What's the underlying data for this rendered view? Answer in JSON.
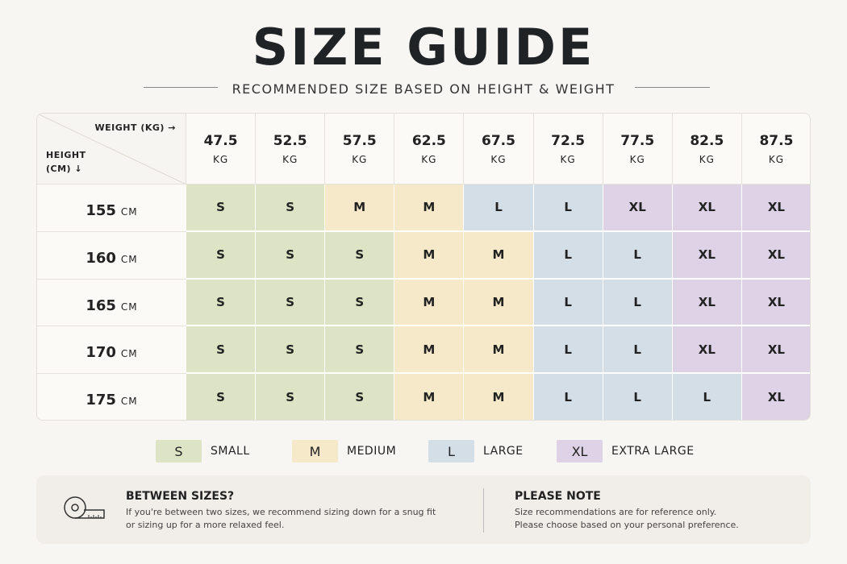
{
  "title": "SIZE GUIDE",
  "subtitle": "RECOMMENDED SIZE BASED ON HEIGHT & WEIGHT",
  "table": {
    "weight_label": "WEIGHT (KG) →",
    "height_label": [
      "HEIGHT",
      "(CM) ↓"
    ],
    "columns": [
      {
        "value": "47.5",
        "unit": "KG"
      },
      {
        "value": "52.5",
        "unit": "KG"
      },
      {
        "value": "57.5",
        "unit": "KG"
      },
      {
        "value": "62.5",
        "unit": "KG"
      },
      {
        "value": "67.5",
        "unit": "KG"
      },
      {
        "value": "72.5",
        "unit": "KG"
      },
      {
        "value": "77.5",
        "unit": "KG"
      },
      {
        "value": "82.5",
        "unit": "KG"
      },
      {
        "value": "87.5",
        "unit": "KG"
      }
    ],
    "rows": [
      {
        "height": "155",
        "unit": "CM",
        "sizes": [
          "S",
          "S",
          "M",
          "M",
          "L",
          "L",
          "XL",
          "XL",
          "XL"
        ]
      },
      {
        "height": "160",
        "unit": "CM",
        "sizes": [
          "S",
          "S",
          "S",
          "M",
          "M",
          "L",
          "L",
          "XL",
          "XL"
        ]
      },
      {
        "height": "165",
        "unit": "CM",
        "sizes": [
          "S",
          "S",
          "S",
          "M",
          "M",
          "L",
          "L",
          "XL",
          "XL"
        ]
      },
      {
        "height": "170",
        "unit": "CM",
        "sizes": [
          "S",
          "S",
          "S",
          "M",
          "M",
          "L",
          "L",
          "XL",
          "XL"
        ]
      },
      {
        "height": "175",
        "unit": "CM",
        "sizes": [
          "S",
          "S",
          "S",
          "M",
          "M",
          "L",
          "L",
          "L",
          "XL"
        ]
      }
    ]
  },
  "legend": [
    {
      "code": "S",
      "label": "SMALL",
      "color": "#dde4c6"
    },
    {
      "code": "M",
      "label": "MEDIUM",
      "color": "#f5e9c9"
    },
    {
      "code": "L",
      "label": "LARGE",
      "color": "#d4dee7"
    },
    {
      "code": "XL",
      "label": "EXTRA LARGE",
      "color": "#ddd2e6"
    }
  ],
  "notes": [
    {
      "title": "BETWEEN SIZES?",
      "lines": [
        "If you're between two sizes, we recommend sizing down for a snug fit",
        "or sizing up for a more relaxed feel."
      ]
    },
    {
      "title": "PLEASE NOTE",
      "lines": [
        "Size recommendations are for reference only.",
        "Please choose based on your personal preference."
      ]
    }
  ]
}
